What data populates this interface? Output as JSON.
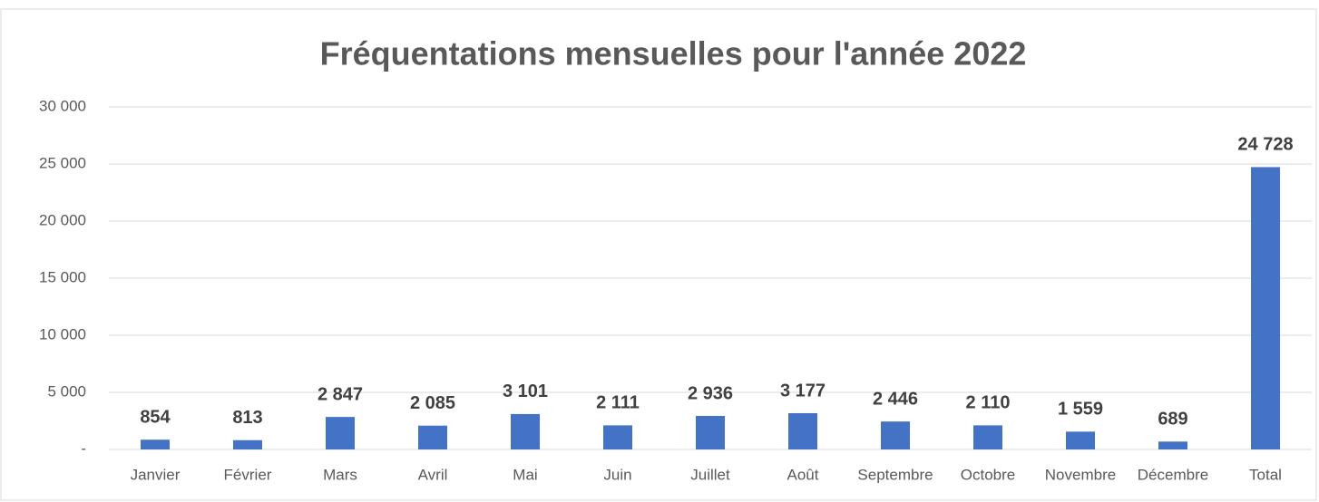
{
  "chart_data": {
    "type": "bar",
    "title": "Fréquentations mensuelles pour l'année 2022",
    "categories": [
      "Janvier",
      "Février",
      "Mars",
      "Avril",
      "Mai",
      "Juin",
      "Juillet",
      "Août",
      "Septembre",
      "Octobre",
      "Novembre",
      "Décembre",
      "Total"
    ],
    "values": [
      854,
      813,
      2847,
      2085,
      3101,
      2111,
      2936,
      3177,
      2446,
      2110,
      1559,
      689,
      24728
    ],
    "value_labels": [
      "854",
      "813",
      "2 847",
      "2 085",
      "3 101",
      "2 111",
      "2 936",
      "3 177",
      "2 446",
      "2 110",
      "1 559",
      "689",
      "24 728"
    ],
    "color": "#4472c4",
    "ylim": [
      0,
      30000
    ],
    "yticks": [
      {
        "value": 0,
        "label": "-"
      },
      {
        "value": 5000,
        "label": "5 000"
      },
      {
        "value": 10000,
        "label": "10 000"
      },
      {
        "value": 15000,
        "label": "15 000"
      },
      {
        "value": 20000,
        "label": "20 000"
      },
      {
        "value": 25000,
        "label": "25 000"
      },
      {
        "value": 30000,
        "label": "30 000"
      }
    ],
    "grid": true
  }
}
